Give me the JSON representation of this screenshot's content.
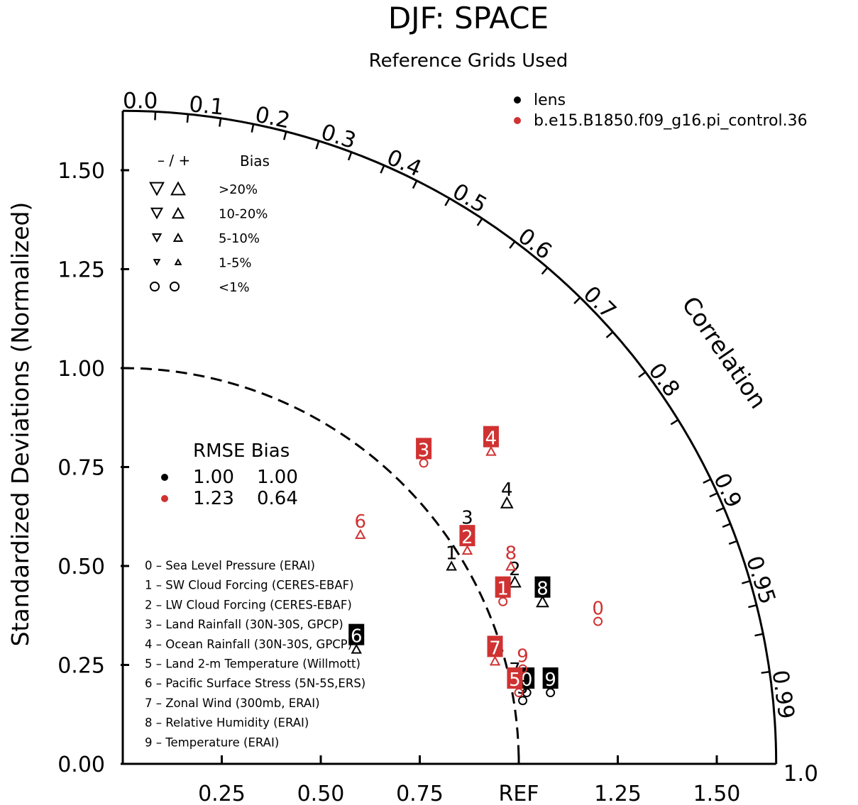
{
  "chart_data": {
    "type": "taylor-diagram",
    "title": "DJF: SPACE",
    "subtitle": "Reference Grids Used",
    "ylabel": "Standardized Deviations (Normalized)",
    "correlation_label": "Correlation",
    "ref_label": "REF",
    "std_range": [
      0,
      1.65
    ],
    "std_ticks": [
      "0.00",
      "0.25",
      "0.50",
      "0.75",
      "1.00",
      "1.25",
      "1.50"
    ],
    "x_ticks": [
      {
        "value": 0.25,
        "label": "0.25"
      },
      {
        "value": 0.5,
        "label": "0.50"
      },
      {
        "value": 0.75,
        "label": "0.75"
      },
      {
        "value": 1.0,
        "label": "REF"
      },
      {
        "value": 1.25,
        "label": "1.25"
      },
      {
        "value": 1.5,
        "label": "1.50"
      }
    ],
    "corr_labels": [
      "0.0",
      "0.1",
      "0.2",
      "0.3",
      "0.4",
      "0.5",
      "0.6",
      "0.7",
      "0.8",
      "0.9",
      "0.95",
      "0.99",
      "1.0"
    ],
    "series": [
      {
        "name": "lens",
        "color": "#000000"
      },
      {
        "name": "b.e15.B1850.f09_g16.pi_control.36",
        "color": "#d03232"
      }
    ],
    "points": [
      {
        "series": 0,
        "id": "0",
        "x": 1.02,
        "y": 0.18,
        "marker": "circle",
        "label_dx": 0.0,
        "label_dy": 0.035,
        "boxed": true
      },
      {
        "series": 0,
        "id": "1",
        "x": 0.83,
        "y": 0.5,
        "marker": "tri-up-small",
        "label_dx": 0.0,
        "label_dy": 0.035,
        "boxed": false
      },
      {
        "series": 0,
        "id": "2",
        "x": 0.99,
        "y": 0.46,
        "marker": "tri-up",
        "label_dx": 0.0,
        "label_dy": 0.035,
        "boxed": false
      },
      {
        "series": 0,
        "id": "3",
        "x": 0.87,
        "y": 0.59,
        "marker": "tri-up-small",
        "label_dx": 0.0,
        "label_dy": 0.035,
        "boxed": false
      },
      {
        "series": 0,
        "id": "4",
        "x": 0.97,
        "y": 0.66,
        "marker": "tri-up",
        "label_dx": 0.0,
        "label_dy": 0.035,
        "boxed": false
      },
      {
        "series": 0,
        "id": "5",
        "x": 1.01,
        "y": 0.16,
        "marker": "circle",
        "label_dx": 0.0,
        "label_dy": 0.035,
        "boxed": false
      },
      {
        "series": 0,
        "id": "6",
        "x": 0.59,
        "y": 0.29,
        "marker": "tri-up-small",
        "label_dx": 0.0,
        "label_dy": 0.035,
        "boxed": true
      },
      {
        "series": 0,
        "id": "7",
        "x": 1.0,
        "y": 0.2,
        "marker": "circle",
        "label_dx": -0.01,
        "label_dy": 0.04,
        "boxed": false
      },
      {
        "series": 0,
        "id": "8",
        "x": 1.06,
        "y": 0.41,
        "marker": "tri-up",
        "label_dx": 0.0,
        "label_dy": 0.035,
        "boxed": true
      },
      {
        "series": 0,
        "id": "9",
        "x": 1.08,
        "y": 0.18,
        "marker": "circle",
        "label_dx": 0.0,
        "label_dy": 0.035,
        "boxed": true
      },
      {
        "series": 1,
        "id": "0",
        "x": 1.2,
        "y": 0.36,
        "marker": "circle",
        "label_dx": 0.0,
        "label_dy": 0.035,
        "boxed": false
      },
      {
        "series": 1,
        "id": "1",
        "x": 0.96,
        "y": 0.41,
        "marker": "circle",
        "label_dx": 0.0,
        "label_dy": 0.035,
        "boxed": true
      },
      {
        "series": 1,
        "id": "2",
        "x": 0.87,
        "y": 0.54,
        "marker": "tri-up-small",
        "label_dx": 0.0,
        "label_dy": 0.035,
        "boxed": true
      },
      {
        "series": 1,
        "id": "3",
        "x": 0.76,
        "y": 0.76,
        "marker": "circle",
        "label_dx": 0.0,
        "label_dy": 0.035,
        "boxed": true
      },
      {
        "series": 1,
        "id": "4",
        "x": 0.93,
        "y": 0.79,
        "marker": "tri-up-small",
        "label_dx": 0.0,
        "label_dy": 0.035,
        "boxed": true
      },
      {
        "series": 1,
        "id": "5",
        "x": 1.0,
        "y": 0.18,
        "marker": "circle",
        "label_dx": -0.01,
        "label_dy": 0.035,
        "boxed": true
      },
      {
        "series": 1,
        "id": "6",
        "x": 0.6,
        "y": 0.58,
        "marker": "tri-up-small",
        "label_dx": 0.0,
        "label_dy": 0.035,
        "boxed": false
      },
      {
        "series": 1,
        "id": "7",
        "x": 0.94,
        "y": 0.26,
        "marker": "tri-up-small",
        "label_dx": 0.0,
        "label_dy": 0.035,
        "boxed": true
      },
      {
        "series": 1,
        "id": "8",
        "x": 0.98,
        "y": 0.5,
        "marker": "tri-up-small",
        "label_dx": 0.0,
        "label_dy": 0.035,
        "boxed": false
      },
      {
        "series": 1,
        "id": "9",
        "x": 1.01,
        "y": 0.24,
        "marker": "circle",
        "label_dx": 0.0,
        "label_dy": 0.035,
        "boxed": false
      }
    ],
    "bias_legend": {
      "header_sign": "–  /  +",
      "header_label": "Bias",
      "rows": [
        {
          "label": ">20%",
          "marker": "tri",
          "scale": 1.0
        },
        {
          "label": "10-20%",
          "marker": "tri",
          "scale": 0.8
        },
        {
          "label": "5-10%",
          "marker": "tri",
          "scale": 0.6
        },
        {
          "label": "1-5%",
          "marker": "tri",
          "scale": 0.4
        },
        {
          "label": "<1%",
          "marker": "circle",
          "scale": 0.6
        }
      ]
    },
    "stats_table": {
      "header": "RMSE Bias",
      "rows": [
        {
          "color": "#000000",
          "rmse": "1.00",
          "bias": "1.00"
        },
        {
          "color": "#d03232",
          "rmse": "1.23",
          "bias": "0.64"
        }
      ]
    },
    "variable_list": [
      "0 – Sea Level Pressure (ERAI)",
      "1 – SW Cloud Forcing (CERES-EBAF)",
      "2 – LW Cloud Forcing (CERES-EBAF)",
      "3 – Land Rainfall (30N-30S, GPCP)",
      "4 – Ocean Rainfall (30N-30S, GPCP)",
      "5 – Land 2-m Temperature (Willmott)",
      "6 – Pacific Surface Stress (5N-5S,ERS)",
      "7 – Zonal Wind (300mb, ERAI)",
      "8 – Relative Humidity (ERAI)",
      "9 – Temperature (ERAI)"
    ]
  }
}
